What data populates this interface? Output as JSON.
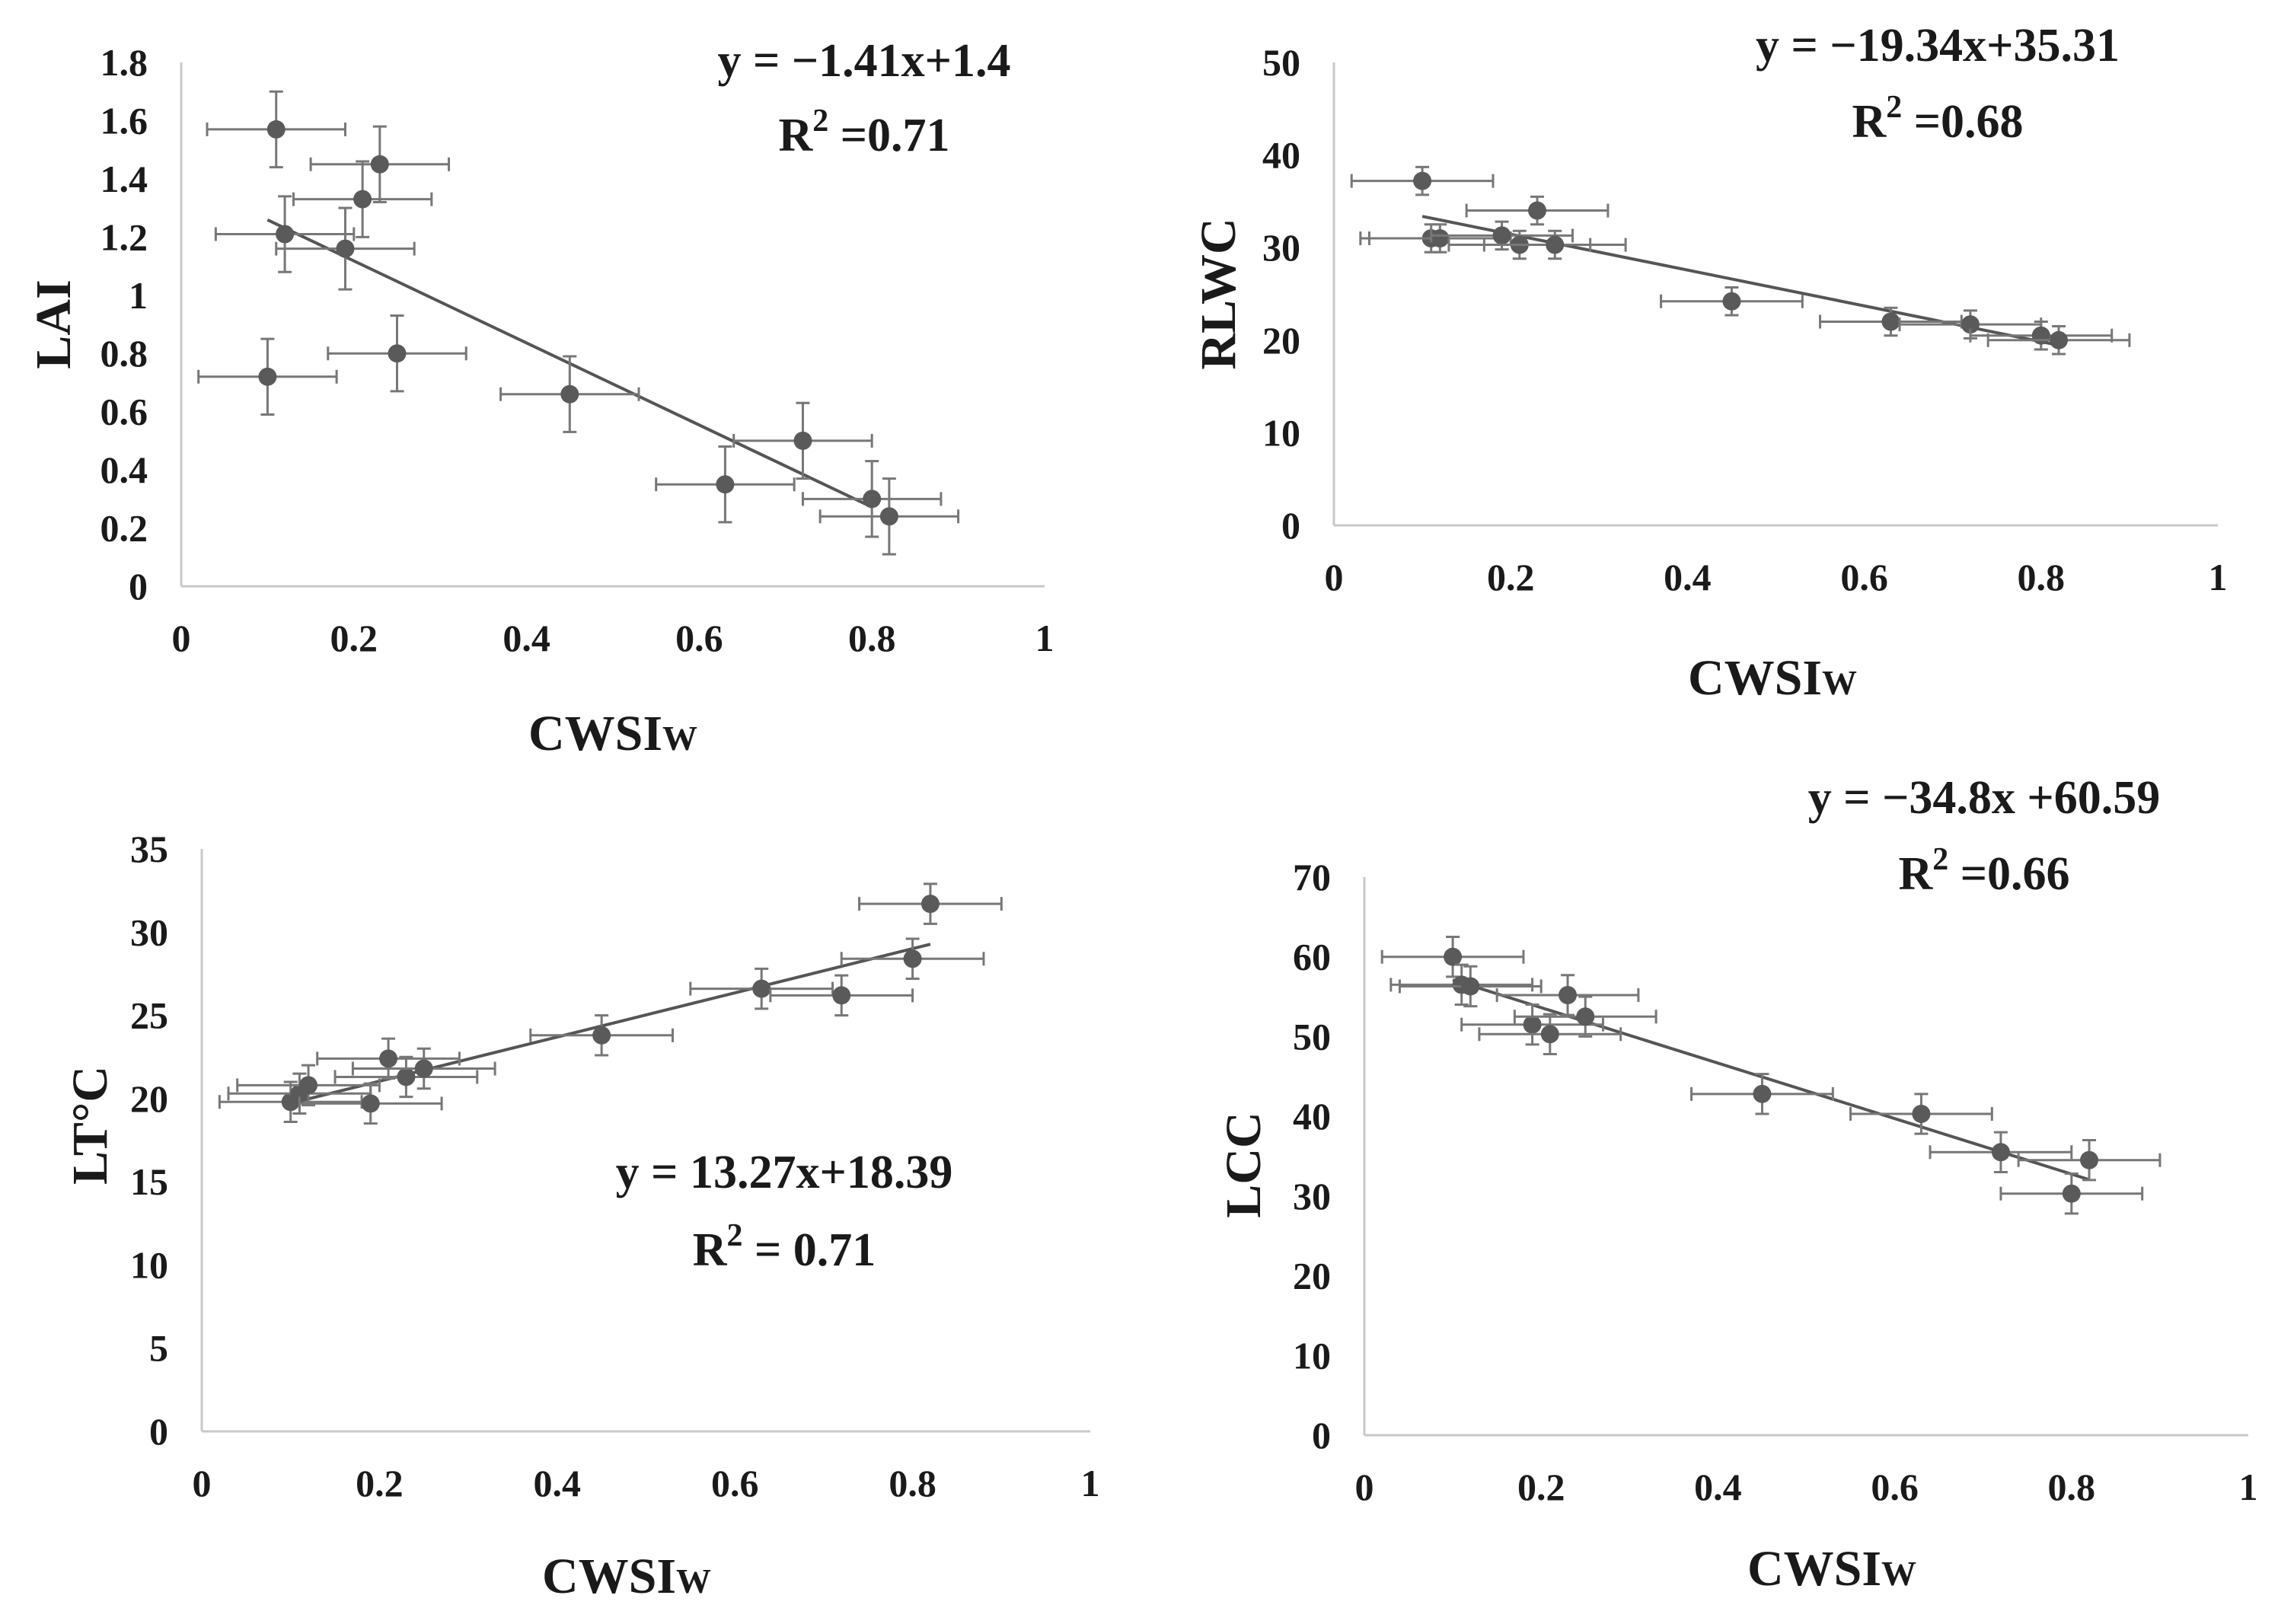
{
  "chart_data": [
    {
      "type": "scatter",
      "id": "lai",
      "xlabel": "CWSI",
      "xlabel_sub": "W",
      "ylabel": "LAI",
      "xlim": [
        0,
        1
      ],
      "ylim": [
        0,
        1.8
      ],
      "x_ticks": [
        "0",
        "0.2",
        "0.4",
        "0.6",
        "0.8",
        "1"
      ],
      "y_ticks": [
        "0",
        "0.2",
        "0.4",
        "0.6",
        "0.8",
        "1",
        "1.2",
        "1.4",
        "1.6",
        "1.8"
      ],
      "equation": "y = −1.41x+1.4",
      "r2_label": "R",
      "r2_sup": "2",
      "r2_value": " =0.71",
      "trendline": {
        "slope": -1.41,
        "intercept": 1.4,
        "x_range": [
          0.1,
          0.8
        ]
      },
      "points": [
        {
          "x": 0.11,
          "y": 1.57,
          "xerr": 0.08,
          "yerr": 0.13
        },
        {
          "x": 0.12,
          "y": 1.21,
          "xerr": 0.08,
          "yerr": 0.13
        },
        {
          "x": 0.19,
          "y": 1.16,
          "xerr": 0.08,
          "yerr": 0.14
        },
        {
          "x": 0.21,
          "y": 1.33,
          "xerr": 0.08,
          "yerr": 0.13
        },
        {
          "x": 0.23,
          "y": 1.45,
          "xerr": 0.08,
          "yerr": 0.13
        },
        {
          "x": 0.1,
          "y": 0.72,
          "xerr": 0.08,
          "yerr": 0.13
        },
        {
          "x": 0.25,
          "y": 0.8,
          "xerr": 0.08,
          "yerr": 0.13
        },
        {
          "x": 0.45,
          "y": 0.66,
          "xerr": 0.08,
          "yerr": 0.13
        },
        {
          "x": 0.63,
          "y": 0.35,
          "xerr": 0.08,
          "yerr": 0.13
        },
        {
          "x": 0.72,
          "y": 0.5,
          "xerr": 0.08,
          "yerr": 0.13
        },
        {
          "x": 0.8,
          "y": 0.3,
          "xerr": 0.08,
          "yerr": 0.13
        },
        {
          "x": 0.82,
          "y": 0.24,
          "xerr": 0.08,
          "yerr": 0.13
        }
      ]
    },
    {
      "type": "scatter",
      "id": "rlwc",
      "xlabel": "CWSI",
      "xlabel_sub": "W",
      "ylabel": "RLWC",
      "xlim": [
        0,
        1
      ],
      "ylim": [
        0,
        50
      ],
      "x_ticks": [
        "0",
        "0.2",
        "0.4",
        "0.6",
        "0.8",
        "1"
      ],
      "y_ticks": [
        "0",
        "10",
        "20",
        "30",
        "40",
        "50"
      ],
      "equation": "y = −19.34x+35.31",
      "r2_label": "R",
      "r2_sup": "2",
      "r2_value": " =0.68",
      "trendline": {
        "slope": -19.34,
        "intercept": 35.31,
        "x_range": [
          0.1,
          0.82
        ]
      },
      "points": [
        {
          "x": 0.1,
          "y": 37.2,
          "xerr": 0.08,
          "yerr": 1.5
        },
        {
          "x": 0.11,
          "y": 31.0,
          "xerr": 0.08,
          "yerr": 1.5
        },
        {
          "x": 0.12,
          "y": 31.0,
          "xerr": 0.08,
          "yerr": 1.5
        },
        {
          "x": 0.19,
          "y": 31.3,
          "xerr": 0.08,
          "yerr": 1.5
        },
        {
          "x": 0.21,
          "y": 30.3,
          "xerr": 0.08,
          "yerr": 1.5
        },
        {
          "x": 0.23,
          "y": 34.0,
          "xerr": 0.08,
          "yerr": 1.5
        },
        {
          "x": 0.25,
          "y": 30.3,
          "xerr": 0.08,
          "yerr": 1.5
        },
        {
          "x": 0.45,
          "y": 24.2,
          "xerr": 0.08,
          "yerr": 1.5
        },
        {
          "x": 0.63,
          "y": 22.0,
          "xerr": 0.08,
          "yerr": 1.5
        },
        {
          "x": 0.72,
          "y": 21.7,
          "xerr": 0.08,
          "yerr": 1.5
        },
        {
          "x": 0.8,
          "y": 20.5,
          "xerr": 0.08,
          "yerr": 1.5
        },
        {
          "x": 0.82,
          "y": 20.0,
          "xerr": 0.08,
          "yerr": 1.5
        }
      ]
    },
    {
      "type": "scatter",
      "id": "lt",
      "xlabel": "CWSI",
      "xlabel_sub": "W",
      "ylabel": "LT°C",
      "xlim": [
        0,
        1
      ],
      "ylim": [
        0,
        35
      ],
      "x_ticks": [
        "0",
        "0.2",
        "0.4",
        "0.6",
        "0.8",
        "1"
      ],
      "y_ticks": [
        "0",
        "5",
        "10",
        "15",
        "20",
        "25",
        "30",
        "35"
      ],
      "equation": "y = 13.27x+18.39",
      "r2_label": "R",
      "r2_sup": "2",
      "r2_value": " = 0.71",
      "trendline": {
        "slope": 13.27,
        "intercept": 18.39,
        "x_range": [
          0.1,
          0.82
        ]
      },
      "points": [
        {
          "x": 0.1,
          "y": 19.8,
          "xerr": 0.08,
          "yerr": 1.2
        },
        {
          "x": 0.11,
          "y": 20.3,
          "xerr": 0.08,
          "yerr": 1.2
        },
        {
          "x": 0.12,
          "y": 20.8,
          "xerr": 0.08,
          "yerr": 1.2
        },
        {
          "x": 0.19,
          "y": 19.7,
          "xerr": 0.08,
          "yerr": 1.2
        },
        {
          "x": 0.21,
          "y": 22.4,
          "xerr": 0.08,
          "yerr": 1.2
        },
        {
          "x": 0.23,
          "y": 21.3,
          "xerr": 0.08,
          "yerr": 1.2
        },
        {
          "x": 0.25,
          "y": 21.8,
          "xerr": 0.08,
          "yerr": 1.2
        },
        {
          "x": 0.45,
          "y": 23.8,
          "xerr": 0.08,
          "yerr": 1.2
        },
        {
          "x": 0.63,
          "y": 26.6,
          "xerr": 0.08,
          "yerr": 1.2
        },
        {
          "x": 0.72,
          "y": 26.2,
          "xerr": 0.08,
          "yerr": 1.2
        },
        {
          "x": 0.8,
          "y": 28.4,
          "xerr": 0.08,
          "yerr": 1.2
        },
        {
          "x": 0.82,
          "y": 31.7,
          "xerr": 0.08,
          "yerr": 1.2
        }
      ]
    },
    {
      "type": "scatter",
      "id": "lcc",
      "xlabel": "CWSI",
      "xlabel_sub": "W",
      "ylabel": "LCC",
      "xlim": [
        0,
        1
      ],
      "ylim": [
        0,
        70
      ],
      "x_ticks": [
        "0",
        "0.2",
        "0.4",
        "0.6",
        "0.8",
        "1"
      ],
      "y_ticks": [
        "0",
        "10",
        "20",
        "30",
        "40",
        "50",
        "60",
        "70"
      ],
      "equation": "y = −34.8x +60.59",
      "r2_label": "R",
      "r2_sup": "2",
      "r2_value": " =0.66",
      "trendline": {
        "slope": -34.8,
        "intercept": 60.59,
        "x_range": [
          0.1,
          0.82
        ]
      },
      "points": [
        {
          "x": 0.1,
          "y": 60.0,
          "xerr": 0.08,
          "yerr": 2.5
        },
        {
          "x": 0.11,
          "y": 56.5,
          "xerr": 0.08,
          "yerr": 2.5
        },
        {
          "x": 0.12,
          "y": 56.3,
          "xerr": 0.08,
          "yerr": 2.5
        },
        {
          "x": 0.19,
          "y": 51.5,
          "xerr": 0.08,
          "yerr": 2.5
        },
        {
          "x": 0.21,
          "y": 50.3,
          "xerr": 0.08,
          "yerr": 2.5
        },
        {
          "x": 0.23,
          "y": 55.2,
          "xerr": 0.08,
          "yerr": 2.5
        },
        {
          "x": 0.25,
          "y": 52.5,
          "xerr": 0.08,
          "yerr": 2.5
        },
        {
          "x": 0.45,
          "y": 42.8,
          "xerr": 0.08,
          "yerr": 2.5
        },
        {
          "x": 0.63,
          "y": 40.3,
          "xerr": 0.08,
          "yerr": 2.5
        },
        {
          "x": 0.72,
          "y": 35.5,
          "xerr": 0.08,
          "yerr": 2.5
        },
        {
          "x": 0.8,
          "y": 30.3,
          "xerr": 0.08,
          "yerr": 2.5
        },
        {
          "x": 0.82,
          "y": 34.5,
          "xerr": 0.08,
          "yerr": 2.5
        }
      ]
    }
  ]
}
